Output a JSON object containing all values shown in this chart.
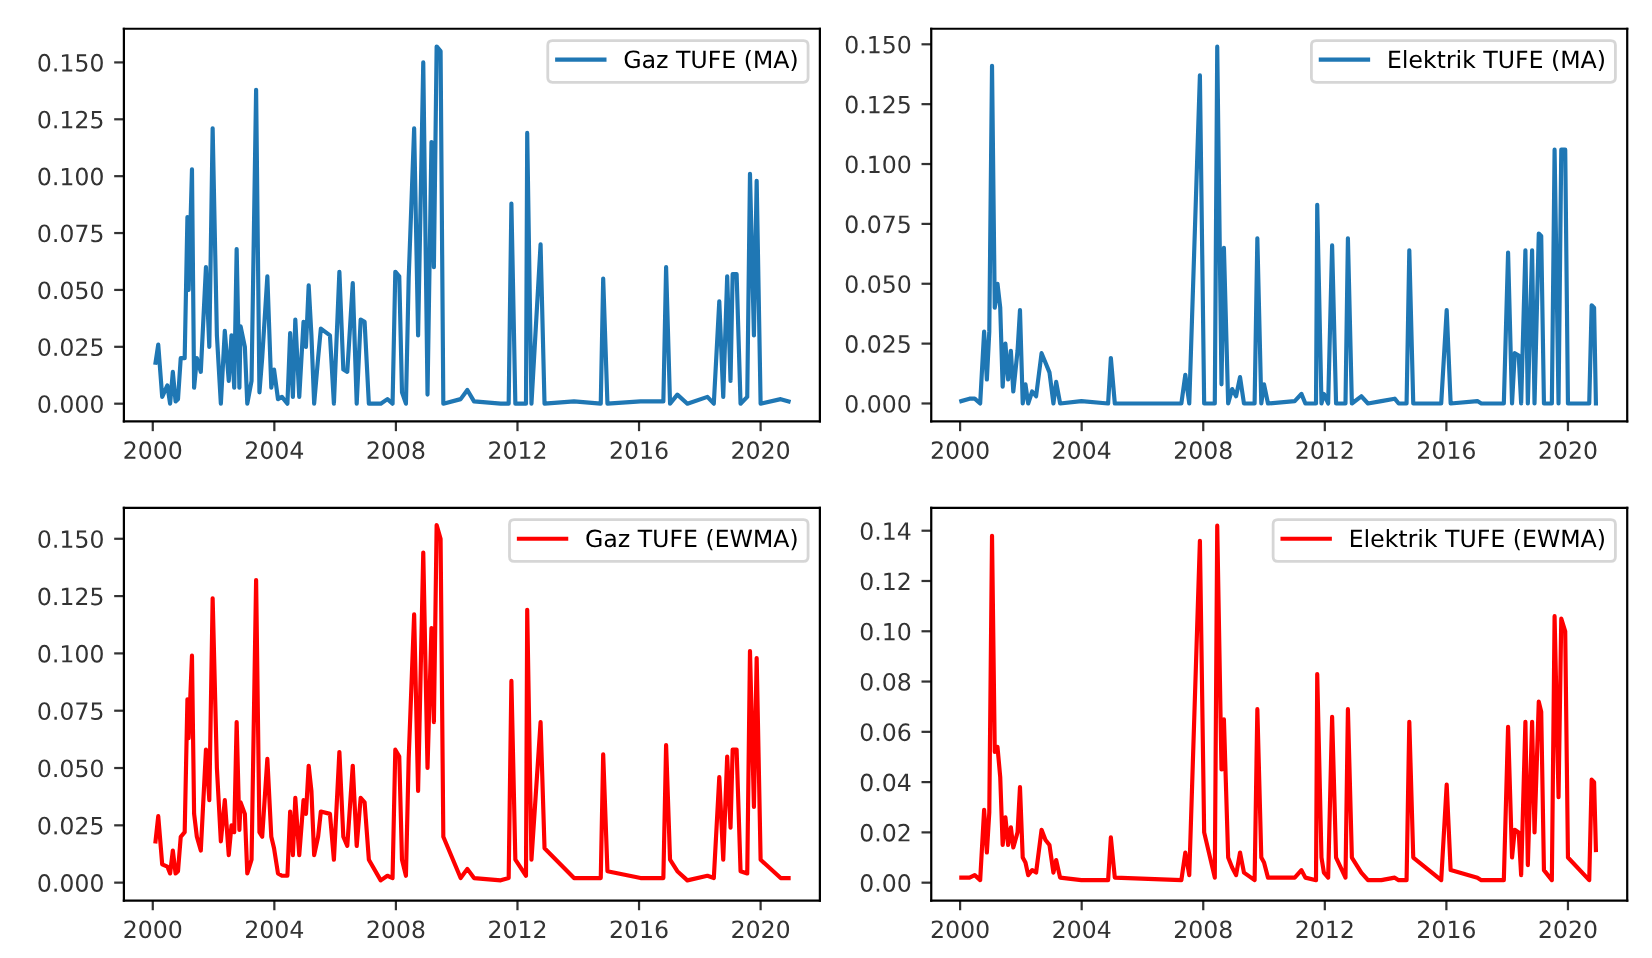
{
  "chart_data": [
    {
      "type": "line",
      "legend": "top right",
      "xlim": [
        1999.05,
        2021.95
      ],
      "xticks": [
        2000,
        2004,
        2008,
        2012,
        2016,
        2020
      ],
      "ylim": [
        -0.0078,
        0.1648
      ],
      "yticks": [
        {
          "value": 0,
          "label": "0.000"
        },
        {
          "value": 0.025,
          "label": "0.025"
        },
        {
          "value": 0.05,
          "label": "0.050"
        },
        {
          "value": 0.075,
          "label": "0.075"
        },
        {
          "value": 0.1,
          "label": "0.100"
        },
        {
          "value": 0.125,
          "label": "0.125"
        },
        {
          "value": 0.15,
          "label": "0.150"
        }
      ],
      "series": [
        {
          "name": "Gaz TUFE (MA)",
          "color": "#1f77b4",
          "x": [
            2000.09,
            2000.18,
            2000.31,
            2000.48,
            2000.57,
            2000.66,
            2000.75,
            2000.83,
            2000.92,
            2001.05,
            2001.14,
            2001.18,
            2001.29,
            2001.36,
            2001.45,
            2001.58,
            2001.75,
            2001.86,
            2001.97,
            2002.11,
            2002.24,
            2002.37,
            2002.5,
            2002.59,
            2002.68,
            2002.76,
            2002.85,
            2002.89,
            2003.03,
            2003.11,
            2003.25,
            2003.4,
            2003.51,
            2003.6,
            2003.77,
            2003.9,
            2003.99,
            2004.12,
            2004.25,
            2004.43,
            2004.52,
            2004.61,
            2004.69,
            2004.82,
            2004.96,
            2005.04,
            2005.13,
            2005.22,
            2005.31,
            2005.44,
            2005.53,
            2005.83,
            2005.96,
            2006.14,
            2006.27,
            2006.4,
            2006.58,
            2006.71,
            2006.84,
            2006.97,
            2007.11,
            2007.5,
            2007.72,
            2007.89,
            2007.98,
            2008.11,
            2008.2,
            2008.33,
            2008.42,
            2008.6,
            2008.73,
            2008.9,
            2009.04,
            2009.17,
            2009.25,
            2009.34,
            2009.47,
            2009.56,
            2010.13,
            2010.35,
            2010.57,
            2011.45,
            2011.71,
            2011.8,
            2011.93,
            2012.28,
            2012.32,
            2012.46,
            2012.76,
            2012.89,
            2013.86,
            2014.74,
            2014.82,
            2014.96,
            2016.05,
            2016.8,
            2016.89,
            2017.02,
            2017.26,
            2017.59,
            2018.25,
            2018.46,
            2018.64,
            2018.77,
            2018.9,
            2019.01,
            2019.08,
            2019.21,
            2019.34,
            2019.56,
            2019.65,
            2019.78,
            2019.87,
            2020.0,
            2020.66,
            2020.92
          ],
          "values": [
            0.018,
            0.026,
            0.003,
            0.008,
            0.0,
            0.014,
            0.001,
            0.002,
            0.02,
            0.02,
            0.082,
            0.05,
            0.103,
            0.007,
            0.02,
            0.014,
            0.06,
            0.025,
            0.121,
            0.03,
            0.0,
            0.032,
            0.01,
            0.03,
            0.007,
            0.068,
            0.007,
            0.034,
            0.025,
            0.0,
            0.01,
            0.138,
            0.005,
            0.02,
            0.056,
            0.007,
            0.015,
            0.002,
            0.003,
            0.0,
            0.031,
            0.003,
            0.037,
            0.003,
            0.036,
            0.025,
            0.052,
            0.03,
            0.0,
            0.02,
            0.033,
            0.03,
            0.0,
            0.058,
            0.015,
            0.014,
            0.053,
            0.0,
            0.037,
            0.036,
            0.0,
            0.0,
            0.002,
            0.0,
            0.058,
            0.056,
            0.005,
            0.0,
            0.055,
            0.121,
            0.03,
            0.15,
            0.004,
            0.115,
            0.06,
            0.157,
            0.155,
            0.0,
            0.002,
            0.006,
            0.001,
            0.0,
            0.0,
            0.088,
            0.0,
            0.0,
            0.119,
            0.0,
            0.07,
            0.0,
            0.001,
            0.0,
            0.055,
            0.0,
            0.001,
            0.001,
            0.06,
            0.0,
            0.004,
            0.0,
            0.003,
            0.0,
            0.045,
            0.003,
            0.056,
            0.01,
            0.057,
            0.057,
            0.0,
            0.003,
            0.101,
            0.03,
            0.098,
            0.0,
            0.002,
            0.001
          ]
        }
      ]
    },
    {
      "type": "line",
      "legend": "top right",
      "xlim": [
        1999.05,
        2021.95
      ],
      "xticks": [
        2000,
        2004,
        2008,
        2012,
        2016,
        2020
      ],
      "ylim": [
        -0.0075,
        0.1565
      ],
      "yticks": [
        {
          "value": 0,
          "label": "0.000"
        },
        {
          "value": 0.025,
          "label": "0.025"
        },
        {
          "value": 0.05,
          "label": "0.050"
        },
        {
          "value": 0.075,
          "label": "0.075"
        },
        {
          "value": 0.1,
          "label": "0.100"
        },
        {
          "value": 0.125,
          "label": "0.125"
        },
        {
          "value": 0.15,
          "label": "0.150"
        }
      ],
      "series": [
        {
          "name": "Elektrik TUFE (MA)",
          "color": "#1f77b4",
          "x": [
            2000.04,
            2000.31,
            2000.48,
            2000.66,
            2000.79,
            2000.88,
            2000.96,
            2001.05,
            2001.14,
            2001.23,
            2001.32,
            2001.4,
            2001.49,
            2001.58,
            2001.67,
            2001.75,
            2001.89,
            2001.97,
            2002.06,
            2002.15,
            2002.24,
            2002.37,
            2002.5,
            2002.68,
            2002.81,
            2002.94,
            2003.07,
            2003.16,
            2003.29,
            2003.99,
            2004.87,
            2004.96,
            2005.09,
            2007.28,
            2007.41,
            2007.54,
            2007.89,
            2008.03,
            2008.38,
            2008.46,
            2008.6,
            2008.68,
            2008.82,
            2008.95,
            2009.08,
            2009.21,
            2009.34,
            2009.69,
            2009.78,
            2009.91,
            2010.0,
            2010.13,
            2011.01,
            2011.23,
            2011.36,
            2011.71,
            2011.75,
            2011.89,
            2011.97,
            2012.11,
            2012.24,
            2012.37,
            2012.68,
            2012.76,
            2012.89,
            2013.2,
            2013.42,
            2013.86,
            2014.3,
            2014.43,
            2014.69,
            2014.78,
            2014.91,
            2015.83,
            2016.01,
            2016.14,
            2017.02,
            2017.15,
            2017.89,
            2018.03,
            2018.16,
            2018.25,
            2018.38,
            2018.46,
            2018.6,
            2018.68,
            2018.82,
            2018.9,
            2019.04,
            2019.12,
            2019.21,
            2019.47,
            2019.56,
            2019.69,
            2019.78,
            2019.91,
            2020.0,
            2020.7,
            2020.78,
            2020.86,
            2020.92
          ],
          "values": [
            0.001,
            0.002,
            0.002,
            0.0,
            0.03,
            0.01,
            0.03,
            0.141,
            0.04,
            0.05,
            0.04,
            0.007,
            0.025,
            0.01,
            0.022,
            0.005,
            0.022,
            0.039,
            0.0,
            0.008,
            0.0,
            0.005,
            0.003,
            0.021,
            0.017,
            0.013,
            0.0,
            0.009,
            0.0,
            0.001,
            0.0,
            0.019,
            0.0,
            0.0,
            0.012,
            0.0,
            0.137,
            0.0,
            0.0,
            0.149,
            0.008,
            0.065,
            0.0,
            0.006,
            0.003,
            0.011,
            0.0,
            0.0,
            0.069,
            0.0,
            0.008,
            0.0,
            0.001,
            0.004,
            0.0,
            0.0,
            0.083,
            0.0,
            0.004,
            0.0,
            0.066,
            0.0,
            0.0,
            0.069,
            0.0,
            0.003,
            0.0,
            0.001,
            0.002,
            0.0,
            0.0,
            0.064,
            0.0,
            0.0,
            0.039,
            0.0,
            0.001,
            0.0,
            0.0,
            0.063,
            0.0,
            0.021,
            0.02,
            0.0,
            0.064,
            0.0,
            0.064,
            0.0,
            0.071,
            0.07,
            0.0,
            0.0,
            0.106,
            0.0,
            0.106,
            0.106,
            0.0,
            0.0,
            0.041,
            0.04,
            0.0
          ]
        }
      ]
    },
    {
      "type": "line",
      "legend": "top right",
      "xlim": [
        1999.05,
        2021.95
      ],
      "xticks": [
        2000,
        2004,
        2008,
        2012,
        2016,
        2020
      ],
      "ylim": [
        -0.0078,
        0.1635
      ],
      "yticks": [
        {
          "value": 0,
          "label": "0.000"
        },
        {
          "value": 0.025,
          "label": "0.025"
        },
        {
          "value": 0.05,
          "label": "0.050"
        },
        {
          "value": 0.075,
          "label": "0.075"
        },
        {
          "value": 0.1,
          "label": "0.100"
        },
        {
          "value": 0.125,
          "label": "0.125"
        },
        {
          "value": 0.15,
          "label": "0.150"
        }
      ],
      "series": [
        {
          "name": "Gaz TUFE (EWMA)",
          "color": "#ff0000",
          "x": [
            2000.09,
            2000.18,
            2000.31,
            2000.48,
            2000.57,
            2000.66,
            2000.75,
            2000.83,
            2000.92,
            2001.05,
            2001.14,
            2001.18,
            2001.29,
            2001.36,
            2001.45,
            2001.58,
            2001.75,
            2001.86,
            2001.97,
            2002.11,
            2002.24,
            2002.37,
            2002.5,
            2002.59,
            2002.68,
            2002.76,
            2002.85,
            2002.89,
            2003.03,
            2003.11,
            2003.25,
            2003.4,
            2003.51,
            2003.6,
            2003.77,
            2003.9,
            2003.99,
            2004.12,
            2004.25,
            2004.43,
            2004.52,
            2004.61,
            2004.69,
            2004.82,
            2004.96,
            2005.04,
            2005.13,
            2005.22,
            2005.31,
            2005.44,
            2005.53,
            2005.83,
            2005.96,
            2006.14,
            2006.27,
            2006.4,
            2006.58,
            2006.71,
            2006.84,
            2006.97,
            2007.11,
            2007.5,
            2007.72,
            2007.89,
            2007.98,
            2008.11,
            2008.2,
            2008.33,
            2008.42,
            2008.6,
            2008.73,
            2008.9,
            2009.04,
            2009.17,
            2009.25,
            2009.34,
            2009.47,
            2009.56,
            2010.13,
            2010.35,
            2010.57,
            2011.45,
            2011.71,
            2011.8,
            2011.93,
            2012.28,
            2012.32,
            2012.46,
            2012.76,
            2012.89,
            2013.86,
            2014.74,
            2014.82,
            2014.96,
            2016.05,
            2016.8,
            2016.89,
            2017.02,
            2017.26,
            2017.59,
            2018.25,
            2018.46,
            2018.64,
            2018.77,
            2018.9,
            2019.01,
            2019.08,
            2019.21,
            2019.34,
            2019.56,
            2019.65,
            2019.78,
            2019.87,
            2020.0,
            2020.66,
            2020.92
          ],
          "values": [
            0.018,
            0.029,
            0.008,
            0.007,
            0.004,
            0.014,
            0.004,
            0.005,
            0.02,
            0.022,
            0.08,
            0.063,
            0.099,
            0.03,
            0.02,
            0.014,
            0.058,
            0.036,
            0.124,
            0.05,
            0.018,
            0.036,
            0.012,
            0.025,
            0.022,
            0.07,
            0.023,
            0.035,
            0.03,
            0.004,
            0.01,
            0.132,
            0.022,
            0.02,
            0.054,
            0.02,
            0.015,
            0.004,
            0.003,
            0.003,
            0.031,
            0.012,
            0.037,
            0.012,
            0.036,
            0.03,
            0.051,
            0.04,
            0.012,
            0.02,
            0.031,
            0.03,
            0.01,
            0.057,
            0.02,
            0.016,
            0.051,
            0.016,
            0.037,
            0.035,
            0.01,
            0.001,
            0.003,
            0.002,
            0.058,
            0.055,
            0.01,
            0.003,
            0.054,
            0.117,
            0.04,
            0.144,
            0.05,
            0.111,
            0.07,
            0.156,
            0.15,
            0.02,
            0.002,
            0.006,
            0.002,
            0.001,
            0.002,
            0.088,
            0.01,
            0.003,
            0.119,
            0.01,
            0.07,
            0.015,
            0.002,
            0.002,
            0.056,
            0.005,
            0.002,
            0.002,
            0.06,
            0.01,
            0.005,
            0.001,
            0.003,
            0.002,
            0.046,
            0.01,
            0.055,
            0.024,
            0.058,
            0.058,
            0.005,
            0.004,
            0.101,
            0.033,
            0.098,
            0.01,
            0.002,
            0.002
          ]
        }
      ]
    },
    {
      "type": "line",
      "legend": "top right",
      "xlim": [
        1999.05,
        2021.95
      ],
      "xticks": [
        2000,
        2004,
        2008,
        2012,
        2016,
        2020
      ],
      "ylim": [
        -0.0071,
        0.1491
      ],
      "yticks": [
        {
          "value": 0,
          "label": "0.00"
        },
        {
          "value": 0.02,
          "label": "0.02"
        },
        {
          "value": 0.04,
          "label": "0.04"
        },
        {
          "value": 0.06,
          "label": "0.06"
        },
        {
          "value": 0.08,
          "label": "0.08"
        },
        {
          "value": 0.1,
          "label": "0.10"
        },
        {
          "value": 0.12,
          "label": "0.12"
        },
        {
          "value": 0.14,
          "label": "0.14"
        }
      ],
      "series": [
        {
          "name": "Elektrik TUFE (EWMA)",
          "color": "#ff0000",
          "x": [
            2000.04,
            2000.31,
            2000.48,
            2000.66,
            2000.79,
            2000.88,
            2000.96,
            2001.05,
            2001.14,
            2001.23,
            2001.32,
            2001.4,
            2001.49,
            2001.58,
            2001.67,
            2001.75,
            2001.89,
            2001.97,
            2002.06,
            2002.15,
            2002.24,
            2002.37,
            2002.5,
            2002.68,
            2002.81,
            2002.94,
            2003.07,
            2003.16,
            2003.29,
            2003.99,
            2004.87,
            2004.96,
            2005.09,
            2007.28,
            2007.41,
            2007.54,
            2007.89,
            2008.03,
            2008.38,
            2008.46,
            2008.6,
            2008.68,
            2008.82,
            2008.95,
            2009.08,
            2009.21,
            2009.34,
            2009.69,
            2009.78,
            2009.91,
            2010.0,
            2010.13,
            2011.01,
            2011.23,
            2011.36,
            2011.71,
            2011.75,
            2011.89,
            2011.97,
            2012.11,
            2012.24,
            2012.37,
            2012.68,
            2012.76,
            2012.89,
            2013.2,
            2013.42,
            2013.86,
            2014.3,
            2014.43,
            2014.69,
            2014.78,
            2014.91,
            2015.83,
            2016.01,
            2016.14,
            2017.02,
            2017.15,
            2017.89,
            2018.03,
            2018.16,
            2018.25,
            2018.38,
            2018.46,
            2018.6,
            2018.68,
            2018.82,
            2018.9,
            2019.04,
            2019.12,
            2019.21,
            2019.47,
            2019.56,
            2019.69,
            2019.78,
            2019.91,
            2020.0,
            2020.7,
            2020.78,
            2020.86,
            2020.92
          ],
          "values": [
            0.002,
            0.002,
            0.003,
            0.001,
            0.029,
            0.012,
            0.028,
            0.138,
            0.052,
            0.054,
            0.042,
            0.015,
            0.026,
            0.015,
            0.022,
            0.014,
            0.02,
            0.038,
            0.01,
            0.008,
            0.003,
            0.005,
            0.004,
            0.021,
            0.017,
            0.015,
            0.004,
            0.009,
            0.002,
            0.001,
            0.001,
            0.018,
            0.002,
            0.001,
            0.012,
            0.003,
            0.136,
            0.02,
            0.002,
            0.142,
            0.045,
            0.065,
            0.01,
            0.006,
            0.003,
            0.012,
            0.004,
            0.001,
            0.069,
            0.01,
            0.008,
            0.002,
            0.002,
            0.005,
            0.002,
            0.001,
            0.083,
            0.01,
            0.004,
            0.002,
            0.066,
            0.01,
            0.002,
            0.069,
            0.01,
            0.004,
            0.001,
            0.001,
            0.002,
            0.001,
            0.001,
            0.064,
            0.01,
            0.001,
            0.039,
            0.005,
            0.002,
            0.001,
            0.001,
            0.062,
            0.01,
            0.021,
            0.02,
            0.003,
            0.064,
            0.007,
            0.064,
            0.02,
            0.072,
            0.068,
            0.005,
            0.001,
            0.106,
            0.034,
            0.105,
            0.1,
            0.01,
            0.001,
            0.041,
            0.04,
            0.013
          ]
        }
      ]
    }
  ]
}
